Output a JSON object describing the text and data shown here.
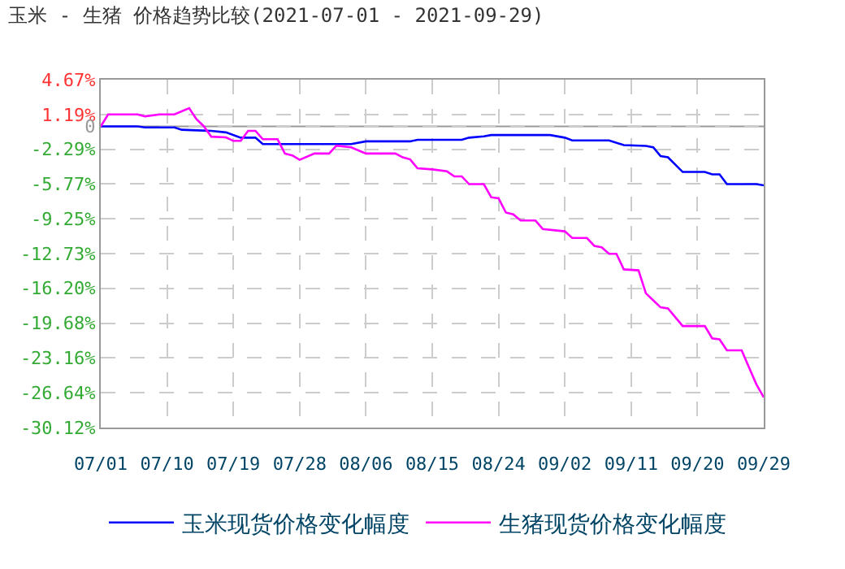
{
  "chart_data": {
    "type": "line",
    "title": "玉米 - 生猪 价格趋势比较(2021-07-01 - 2021-09-29)",
    "xlim": [
      "2021-07-01",
      "2021-09-29"
    ],
    "xticks": [
      {
        "value": "2021-07-01",
        "label": "07/01"
      },
      {
        "value": "2021-07-10",
        "label": "07/10"
      },
      {
        "value": "2021-07-19",
        "label": "07/19"
      },
      {
        "value": "2021-07-28",
        "label": "07/28"
      },
      {
        "value": "2021-08-06",
        "label": "08/06"
      },
      {
        "value": "2021-08-15",
        "label": "08/15"
      },
      {
        "value": "2021-08-24",
        "label": "08/24"
      },
      {
        "value": "2021-09-02",
        "label": "09/02"
      },
      {
        "value": "2021-09-11",
        "label": "09/11"
      },
      {
        "value": "2021-09-20",
        "label": "09/20"
      },
      {
        "value": "2021-09-29",
        "label": "09/29"
      }
    ],
    "ylim": [
      -30.12,
      4.67
    ],
    "yticks": [
      {
        "value": 4.67,
        "label": "4.67%"
      },
      {
        "value": 1.19,
        "label": "1.19%"
      },
      0,
      {
        "value": -2.29,
        "label": "-2.29%"
      },
      {
        "value": -5.77,
        "label": "-5.77%"
      },
      {
        "value": -9.25,
        "label": "-9.25%"
      },
      {
        "value": -12.73,
        "label": "-12.73%"
      },
      {
        "value": -16.2,
        "label": "-16.20%"
      },
      {
        "value": -19.68,
        "label": "-19.68%"
      },
      {
        "value": -23.16,
        "label": "-23.16%"
      },
      {
        "value": -26.64,
        "label": "-26.64%"
      },
      {
        "value": -30.12,
        "label": "-30.12%"
      }
    ],
    "grid": true,
    "legend": "bottom",
    "line_style": "solid",
    "marker": "none",
    "ref_lines": [
      {
        "axis": "y",
        "value": 0,
        "color": "#999999",
        "line_style": "solid"
      }
    ],
    "series": [
      {
        "name": "玉米现货价格变化幅度",
        "color": "#0000ff",
        "x": [
          "2021-07-01",
          "2021-07-06",
          "2021-07-07",
          "2021-07-11",
          "2021-07-12",
          "2021-07-16",
          "2021-07-18",
          "2021-07-20",
          "2021-07-22",
          "2021-07-23",
          "2021-08-04",
          "2021-08-06",
          "2021-08-12",
          "2021-08-13",
          "2021-08-19",
          "2021-08-20",
          "2021-08-22",
          "2021-08-23",
          "2021-08-31",
          "2021-09-02",
          "2021-09-03",
          "2021-09-08",
          "2021-09-10",
          "2021-09-13",
          "2021-09-14",
          "2021-09-15",
          "2021-09-16",
          "2021-09-18",
          "2021-09-21",
          "2021-09-22",
          "2021-09-23",
          "2021-09-24",
          "2021-09-28",
          "2021-09-29"
        ],
        "values": [
          0,
          0,
          -0.1,
          -0.1,
          -0.34,
          -0.45,
          -0.6,
          -1.13,
          -1.13,
          -1.77,
          -1.77,
          -1.5,
          -1.5,
          -1.34,
          -1.34,
          -1.13,
          -1.0,
          -0.87,
          -0.87,
          -1.13,
          -1.4,
          -1.4,
          -1.87,
          -1.95,
          -2.1,
          -2.98,
          -3.1,
          -4.56,
          -4.56,
          -4.8,
          -4.8,
          -5.78,
          -5.78,
          -5.9
        ]
      },
      {
        "name": "生猪现货价格变化幅度",
        "color": "#ff00ff",
        "x": [
          "2021-07-01",
          "2021-07-02",
          "2021-07-06",
          "2021-07-07",
          "2021-07-09",
          "2021-07-11",
          "2021-07-13",
          "2021-07-14",
          "2021-07-15",
          "2021-07-16",
          "2021-07-18",
          "2021-07-19",
          "2021-07-20",
          "2021-07-21",
          "2021-07-22",
          "2021-07-23",
          "2021-07-25",
          "2021-07-26",
          "2021-07-27",
          "2021-07-28",
          "2021-07-30",
          "2021-08-01",
          "2021-08-02",
          "2021-08-04",
          "2021-08-06",
          "2021-08-10",
          "2021-08-11",
          "2021-08-12",
          "2021-08-13",
          "2021-08-15",
          "2021-08-17",
          "2021-08-18",
          "2021-08-19",
          "2021-08-20",
          "2021-08-22",
          "2021-08-23",
          "2021-08-24",
          "2021-08-25",
          "2021-08-26",
          "2021-08-27",
          "2021-08-29",
          "2021-08-30",
          "2021-09-02",
          "2021-09-03",
          "2021-09-05",
          "2021-09-06",
          "2021-09-07",
          "2021-09-08",
          "2021-09-09",
          "2021-09-10",
          "2021-09-12",
          "2021-09-13",
          "2021-09-14",
          "2021-09-15",
          "2021-09-16",
          "2021-09-18",
          "2021-09-21",
          "2021-09-22",
          "2021-09-23",
          "2021-09-24",
          "2021-09-26",
          "2021-09-27",
          "2021-09-28",
          "2021-09-29"
        ],
        "values": [
          0,
          1.19,
          1.19,
          1.0,
          1.2,
          1.2,
          1.82,
          0.71,
          0,
          -1.03,
          -1.1,
          -1.45,
          -1.45,
          -0.45,
          -0.45,
          -1.29,
          -1.29,
          -2.72,
          -2.9,
          -3.35,
          -2.72,
          -2.72,
          -1.93,
          -2.1,
          -2.72,
          -2.72,
          -3.1,
          -3.3,
          -4.19,
          -4.3,
          -4.5,
          -5.0,
          -5.0,
          -5.78,
          -5.78,
          -7.09,
          -7.2,
          -8.62,
          -8.8,
          -9.41,
          -9.41,
          -10.26,
          -10.5,
          -11.16,
          -11.16,
          -11.95,
          -12.1,
          -12.74,
          -12.74,
          -14.3,
          -14.4,
          -16.7,
          -17.4,
          -18.1,
          -18.2,
          -19.97,
          -19.97,
          -21.2,
          -21.3,
          -22.4,
          -22.4,
          -24.1,
          -25.8,
          -27.1
        ]
      }
    ]
  }
}
